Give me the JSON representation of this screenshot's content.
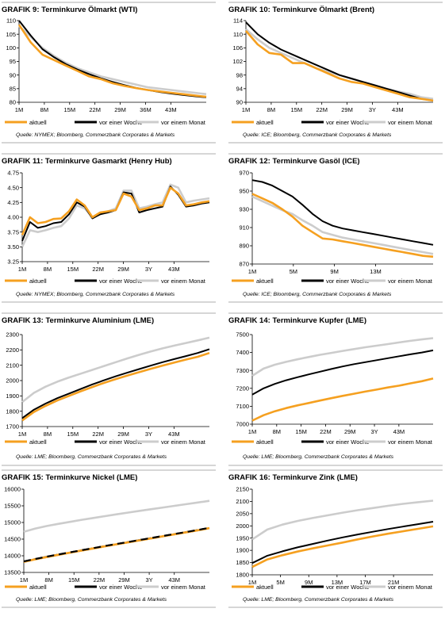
{
  "colors": {
    "aktuell": "#f5a020",
    "woche": "#000000",
    "monat": "#cccccc",
    "rule": "#c8c8c8",
    "axis": "#000000"
  },
  "charts": [
    {
      "id": "g9",
      "grafik": "GRAFIK 9:",
      "title": "Terminkurve Ölmarkt (WTI)",
      "source": "Quelle: NYMEX; Bloomberg, Commerzbank Corporates & Markets",
      "yticks": [
        "110",
        "105",
        "100",
        "95",
        "90",
        "85",
        "80"
      ],
      "xticks": [
        "1M",
        "8M",
        "15M",
        "22M",
        "29M",
        "36M",
        "43M"
      ],
      "legend": [
        "aktuell",
        "vor einer Woche",
        "vor einem Monat"
      ]
    },
    {
      "id": "g10",
      "grafik": "GRAFIK 10:",
      "title": "Terminkurve Ölmarkt (Brent)",
      "source": "Quelle: ICE; Bloomberg, Commerzbank Corporates & Markets",
      "yticks": [
        "114",
        "110",
        "106",
        "102",
        "98",
        "94",
        "90"
      ],
      "xticks": [
        "1M",
        "8M",
        "15M",
        "22M",
        "29M",
        "3Y",
        "43M"
      ],
      "legend": [
        "aktuell",
        "vor einer Woche",
        "vor einem Monat"
      ]
    },
    {
      "id": "g11",
      "grafik": "GRAFIK 11:",
      "title": "Terminkurve Gasmarkt (Henry Hub)",
      "source": "Quelle: NYMEX; Bloomberg, Commerzbank Corporates & Markets",
      "yticks": [
        "4.75",
        "4.50",
        "4.25",
        "4.00",
        "3.75",
        "3.50",
        "3.25"
      ],
      "xticks": [
        "1M",
        "8M",
        "15M",
        "22M",
        "29M",
        "3Y",
        "43M"
      ],
      "legend": [
        "aktuell",
        "vor einer Woche",
        "vor einem Monat"
      ]
    },
    {
      "id": "g12",
      "grafik": "GRAFIK 12:",
      "title": "Terminkurve Gasöl (ICE)",
      "source": "Quelle: ICE; Bloomberg, Commerzbank Corporates & Markets",
      "yticks": [
        "970",
        "950",
        "930",
        "910",
        "890",
        "870"
      ],
      "xticks": [
        "1M",
        "5M",
        "9M",
        "13M"
      ],
      "legend": [
        "aktuell",
        "vor einer Woche",
        "vor einem Monat"
      ]
    },
    {
      "id": "g13",
      "grafik": "GRAFIK 13:",
      "title": "Terminkurve Aluminium (LME)",
      "source": "Quelle: LME; Bloomberg, Commerzbank Corporates & Markets",
      "yticks": [
        "2300",
        "2200",
        "2100",
        "2000",
        "1900",
        "1800",
        "1700"
      ],
      "xticks": [
        "1M",
        "8M",
        "15M",
        "22M",
        "29M",
        "3Y",
        "43M"
      ],
      "legend": [
        "aktuell",
        "vor einer Woche",
        "vor einem Monat"
      ]
    },
    {
      "id": "g14",
      "grafik": "GRAFIK 14:",
      "title": "Terminkurve Kupfer (LME)",
      "source": "Quelle: LME; Bloomberg, Commerzbank Corporates & Markets",
      "yticks": [
        "7500",
        "7400",
        "7300",
        "7200",
        "7100",
        "7000"
      ],
      "xticks": [
        "1M",
        "8M",
        "15M",
        "22M",
        "29M",
        "3Y",
        "43M"
      ],
      "legend": [
        "aktuell",
        "vor einer Woche",
        "vor einem Monat"
      ]
    },
    {
      "id": "g15",
      "grafik": "GRAFIK 15:",
      "title": "Terminkurve Nickel (LME)",
      "source": "Quelle: LME; Bloomberg, Commerzbank Corporates & Markets",
      "yticks": [
        "16000",
        "15500",
        "15000",
        "14500",
        "14000",
        "13500"
      ],
      "xticks": [
        "1M",
        "8M",
        "15M",
        "22M",
        "29M",
        "3Y",
        "43M"
      ],
      "legend": [
        "aktuell",
        "vor einer Woche",
        "vor einem Monat"
      ]
    },
    {
      "id": "g16",
      "grafik": "GRAFIK 16:",
      "title": "Terminkurve Zink (LME)",
      "source": "Quelle: LME; Bloomberg, Commerzbank Corporates & Markets",
      "yticks": [
        "2150",
        "2100",
        "2050",
        "2000",
        "1950",
        "1900",
        "1850",
        "1800"
      ],
      "xticks": [
        "1M",
        "5M",
        "9M",
        "13M",
        "17M",
        "21M"
      ],
      "legend": [
        "aktuell",
        "vor einer Woche",
        "vor einem Monat"
      ]
    }
  ],
  "chart_data": [
    {
      "type": "line",
      "x": [
        1,
        4,
        7,
        10,
        13,
        16,
        19,
        22,
        25,
        28,
        31,
        34,
        37,
        40,
        43,
        46,
        49
      ],
      "ylim": [
        80,
        110
      ],
      "series": [
        {
          "name": "aktuell",
          "values": [
            108.5,
            102,
            97.5,
            95.5,
            93.5,
            91.5,
            89.5,
            88.5,
            87,
            86,
            85.2,
            84.5,
            84,
            83.5,
            83,
            82.5,
            82
          ]
        },
        {
          "name": "vor einer Woche",
          "values": [
            110,
            104.5,
            99.5,
            96.5,
            94,
            92,
            90.3,
            88.8,
            87.5,
            86.3,
            85.3,
            84.5,
            83.8,
            83.2,
            82.7,
            82.2,
            81.8
          ]
        },
        {
          "name": "vor einem Monat",
          "values": [
            108,
            104,
            100,
            97,
            94.5,
            92.5,
            91,
            89.5,
            88.5,
            87.5,
            86.5,
            85.5,
            85,
            84.5,
            84,
            83.5,
            83
          ]
        }
      ]
    },
    {
      "type": "line",
      "x": [
        1,
        4,
        7,
        10,
        13,
        16,
        19,
        22,
        25,
        28,
        31,
        34,
        37,
        40,
        43,
        46,
        49
      ],
      "ylim": [
        90,
        114
      ],
      "series": [
        {
          "name": "aktuell",
          "values": [
            111,
            107,
            104.5,
            104,
            101.5,
            101.5,
            100,
            98.5,
            97,
            96,
            95.5,
            94.5,
            93.5,
            92.5,
            91.5,
            91,
            90.5
          ]
        },
        {
          "name": "vor einer Woche",
          "values": [
            113.5,
            110,
            107.5,
            105.5,
            104,
            102.5,
            101,
            99.5,
            98,
            97,
            96,
            95,
            94,
            93,
            92,
            91,
            90.5
          ]
        },
        {
          "name": "vor einem Monat",
          "values": [
            111.5,
            108.5,
            106,
            104.5,
            103,
            101.5,
            100,
            99,
            98,
            97,
            96,
            95,
            94,
            93.2,
            92.5,
            91.5,
            91
          ]
        }
      ]
    },
    {
      "type": "line",
      "x": [
        1,
        3,
        5,
        7,
        9,
        11,
        13,
        15,
        17,
        19,
        21,
        23,
        25,
        27,
        29,
        31,
        33,
        35,
        37,
        39,
        41,
        43,
        45,
        47,
        49
      ],
      "ylim": [
        3.25,
        4.75
      ],
      "series": [
        {
          "name": "aktuell",
          "values": [
            3.7,
            4.0,
            3.9,
            3.92,
            3.97,
            3.98,
            4.1,
            4.3,
            4.2,
            4.0,
            4.08,
            4.1,
            4.12,
            4.4,
            4.35,
            4.12,
            4.15,
            4.2,
            4.2,
            4.5,
            4.4,
            4.2,
            4.22,
            4.25,
            4.27
          ]
        },
        {
          "name": "vor einer Woche",
          "values": [
            3.6,
            3.92,
            3.82,
            3.85,
            3.9,
            3.92,
            4.05,
            4.25,
            4.18,
            3.98,
            4.05,
            4.08,
            4.12,
            4.42,
            4.4,
            4.08,
            4.12,
            4.15,
            4.18,
            4.52,
            4.38,
            4.18,
            4.2,
            4.23,
            4.25
          ]
        },
        {
          "name": "vor einem Monat",
          "values": [
            3.5,
            3.78,
            3.75,
            3.78,
            3.82,
            3.85,
            3.98,
            4.2,
            4.15,
            4.0,
            4.05,
            4.1,
            4.15,
            4.45,
            4.45,
            4.15,
            4.18,
            4.22,
            4.25,
            4.55,
            4.5,
            4.25,
            4.28,
            4.3,
            4.32
          ]
        }
      ]
    },
    {
      "type": "line",
      "x": [
        1,
        2,
        3,
        4,
        5,
        6,
        7,
        8,
        9,
        10,
        11,
        12,
        13,
        14,
        15,
        16,
        17,
        18,
        19
      ],
      "ylim": [
        870,
        970
      ],
      "series": [
        {
          "name": "aktuell",
          "values": [
            947,
            942,
            937,
            930,
            922,
            912,
            905,
            898,
            897,
            895,
            893,
            891,
            889,
            887,
            885,
            883,
            881,
            879,
            878
          ]
        },
        {
          "name": "vor einer Woche",
          "values": [
            962,
            960,
            956,
            950,
            944,
            935,
            925,
            917,
            912,
            909,
            907,
            905,
            903,
            901,
            899,
            897,
            895,
            893,
            891
          ]
        },
        {
          "name": "vor einem Monat",
          "values": [
            944,
            939,
            934,
            929,
            925,
            918,
            912,
            905,
            902,
            899,
            897,
            895,
            893,
            891,
            889,
            887,
            885,
            883,
            881
          ]
        }
      ]
    },
    {
      "type": "line",
      "x": [
        1,
        4,
        7,
        10,
        13,
        16,
        19,
        22,
        25,
        28,
        31,
        34,
        37,
        40,
        43,
        46,
        49
      ],
      "ylim": [
        1700,
        2300
      ],
      "series": [
        {
          "name": "aktuell",
          "values": [
            1740,
            1795,
            1835,
            1870,
            1900,
            1930,
            1958,
            1985,
            2010,
            2033,
            2055,
            2077,
            2098,
            2118,
            2137,
            2155,
            2180
          ]
        },
        {
          "name": "vor einer Woche",
          "values": [
            1755,
            1810,
            1850,
            1885,
            1915,
            1945,
            1975,
            2002,
            2028,
            2052,
            2075,
            2098,
            2120,
            2140,
            2160,
            2180,
            2205
          ]
        },
        {
          "name": "vor einem Monat",
          "values": [
            1860,
            1920,
            1960,
            1993,
            2020,
            2045,
            2070,
            2095,
            2120,
            2145,
            2168,
            2190,
            2210,
            2228,
            2245,
            2262,
            2280
          ]
        }
      ]
    },
    {
      "type": "line",
      "x": [
        1,
        4,
        7,
        10,
        13,
        16,
        19,
        22,
        25,
        28,
        31,
        34,
        37,
        40,
        43,
        46,
        49
      ],
      "ylim": [
        7000,
        7500
      ],
      "series": [
        {
          "name": "aktuell",
          "values": [
            7020,
            7050,
            7072,
            7090,
            7105,
            7118,
            7132,
            7145,
            7158,
            7170,
            7182,
            7193,
            7205,
            7215,
            7228,
            7240,
            7255
          ]
        },
        {
          "name": "vor einer Woche",
          "values": [
            7165,
            7200,
            7225,
            7245,
            7262,
            7278,
            7293,
            7308,
            7322,
            7335,
            7346,
            7357,
            7368,
            7379,
            7390,
            7400,
            7412
          ]
        },
        {
          "name": "vor einem Monat",
          "values": [
            7270,
            7310,
            7332,
            7348,
            7362,
            7375,
            7387,
            7398,
            7409,
            7419,
            7429,
            7438,
            7447,
            7456,
            7465,
            7473,
            7480
          ]
        }
      ]
    },
    {
      "type": "line",
      "x": [
        1,
        4,
        7,
        10,
        13,
        16,
        19,
        22,
        25,
        28,
        31,
        34,
        37,
        40,
        43,
        46,
        49
      ],
      "ylim": [
        13500,
        16000
      ],
      "series": [
        {
          "name": "aktuell",
          "values": [
            13820,
            13895,
            13965,
            14030,
            14095,
            14160,
            14222,
            14285,
            14345,
            14405,
            14465,
            14525,
            14585,
            14645,
            14705,
            14765,
            14830
          ]
        },
        {
          "name": "vor einer Woche",
          "values": [
            13830,
            13905,
            13975,
            14040,
            14105,
            14170,
            14232,
            14295,
            14355,
            14415,
            14475,
            14535,
            14595,
            14655,
            14715,
            14775,
            14840
          ]
        },
        {
          "name": "vor einem Monat",
          "values": [
            14720,
            14820,
            14895,
            14960,
            15020,
            15080,
            15135,
            15190,
            15245,
            15298,
            15350,
            15400,
            15450,
            15500,
            15550,
            15600,
            15650
          ]
        }
      ]
    },
    {
      "type": "line",
      "x": [
        1,
        3,
        5,
        7,
        9,
        11,
        13,
        15,
        17,
        19,
        21,
        23,
        25
      ],
      "ylim": [
        1800,
        2150
      ],
      "series": [
        {
          "name": "aktuell",
          "values": [
            1832,
            1863,
            1880,
            1895,
            1908,
            1920,
            1932,
            1945,
            1957,
            1968,
            1978,
            1988,
            1998
          ]
        },
        {
          "name": "vor einer Woche",
          "values": [
            1848,
            1878,
            1896,
            1912,
            1926,
            1940,
            1953,
            1965,
            1976,
            1987,
            1997,
            2007,
            2017
          ]
        },
        {
          "name": "vor einem Monat",
          "values": [
            1945,
            1985,
            2005,
            2020,
            2032,
            2043,
            2054,
            2064,
            2073,
            2082,
            2090,
            2097,
            2103
          ]
        }
      ]
    }
  ]
}
